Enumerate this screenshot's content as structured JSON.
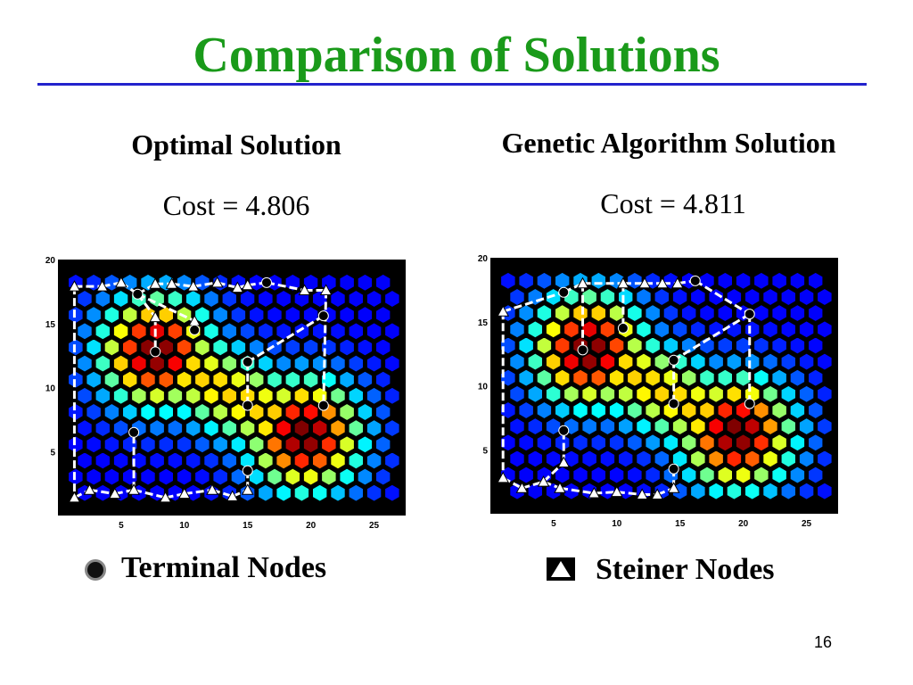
{
  "slide": {
    "title": "Comparison of Solutions",
    "page_number": "16"
  },
  "optimal": {
    "heading": "Optimal Solution",
    "cost": "Cost = 4.806"
  },
  "genetic": {
    "heading": "Genetic Algorithm Solution",
    "cost": "Cost = 4.811"
  },
  "legend": {
    "terminal_label": "Terminal Nodes",
    "steiner_label": "Steiner Nodes"
  },
  "colors": {
    "title": "#1a9a1a",
    "rule": "#2222cc",
    "background_hex": "#0a2fc8",
    "path": "#ffffff"
  },
  "axis": {
    "x_ticks": [
      "5",
      "10",
      "15",
      "20",
      "25"
    ],
    "y_ticks": [
      "5",
      "10",
      "15",
      "20"
    ]
  }
}
